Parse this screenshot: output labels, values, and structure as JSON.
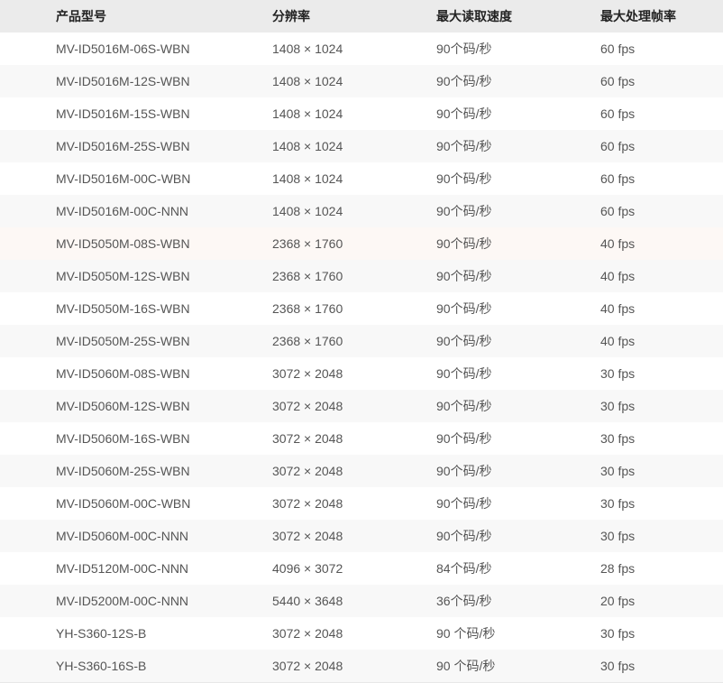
{
  "table": {
    "headers": [
      "产品型号",
      "分辨率",
      "最大读取速度",
      "最大处理帧率"
    ],
    "hover_row_index": 6,
    "rows": [
      [
        "MV-ID5016M-06S-WBN",
        "1408 × 1024",
        "90个码/秒",
        "60 fps"
      ],
      [
        "MV-ID5016M-12S-WBN",
        "1408 × 1024",
        "90个码/秒",
        "60 fps"
      ],
      [
        "MV-ID5016M-15S-WBN",
        "1408 × 1024",
        "90个码/秒",
        "60 fps"
      ],
      [
        "MV-ID5016M-25S-WBN",
        "1408 × 1024",
        "90个码/秒",
        "60 fps"
      ],
      [
        "MV-ID5016M-00C-WBN",
        "1408 × 1024",
        "90个码/秒",
        "60 fps"
      ],
      [
        "MV-ID5016M-00C-NNN",
        "1408 × 1024",
        "90个码/秒",
        "60 fps"
      ],
      [
        "MV-ID5050M-08S-WBN",
        "2368 × 1760",
        "90个码/秒",
        "40 fps"
      ],
      [
        "MV-ID5050M-12S-WBN",
        "2368 × 1760",
        "90个码/秒",
        "40 fps"
      ],
      [
        "MV-ID5050M-16S-WBN",
        "2368 × 1760",
        "90个码/秒",
        "40 fps"
      ],
      [
        "MV-ID5050M-25S-WBN",
        "2368 × 1760",
        "90个码/秒",
        "40 fps"
      ],
      [
        "MV-ID5060M-08S-WBN",
        "3072 × 2048",
        "90个码/秒",
        "30 fps"
      ],
      [
        "MV-ID5060M-12S-WBN",
        "3072 × 2048",
        "90个码/秒",
        "30 fps"
      ],
      [
        "MV-ID5060M-16S-WBN",
        "3072 × 2048",
        "90个码/秒",
        "30 fps"
      ],
      [
        "MV-ID5060M-25S-WBN",
        "3072 × 2048",
        "90个码/秒",
        "30 fps"
      ],
      [
        "MV-ID5060M-00C-WBN",
        "3072 × 2048",
        "90个码/秒",
        "30 fps"
      ],
      [
        "MV-ID5060M-00C-NNN",
        "3072 × 2048",
        "90个码/秒",
        "30 fps"
      ],
      [
        "MV-ID5120M-00C-NNN",
        "4096 × 3072",
        "84个码/秒",
        "28 fps"
      ],
      [
        "MV-ID5200M-00C-NNN",
        "5440 × 3648",
        "36个码/秒",
        "20 fps"
      ],
      [
        "YH-S360-12S-B",
        "3072 × 2048",
        "90 个码/秒",
        "30 fps"
      ],
      [
        "YH-S360-16S-B",
        "3072 × 2048",
        "90 个码/秒",
        "30 fps"
      ]
    ]
  }
}
